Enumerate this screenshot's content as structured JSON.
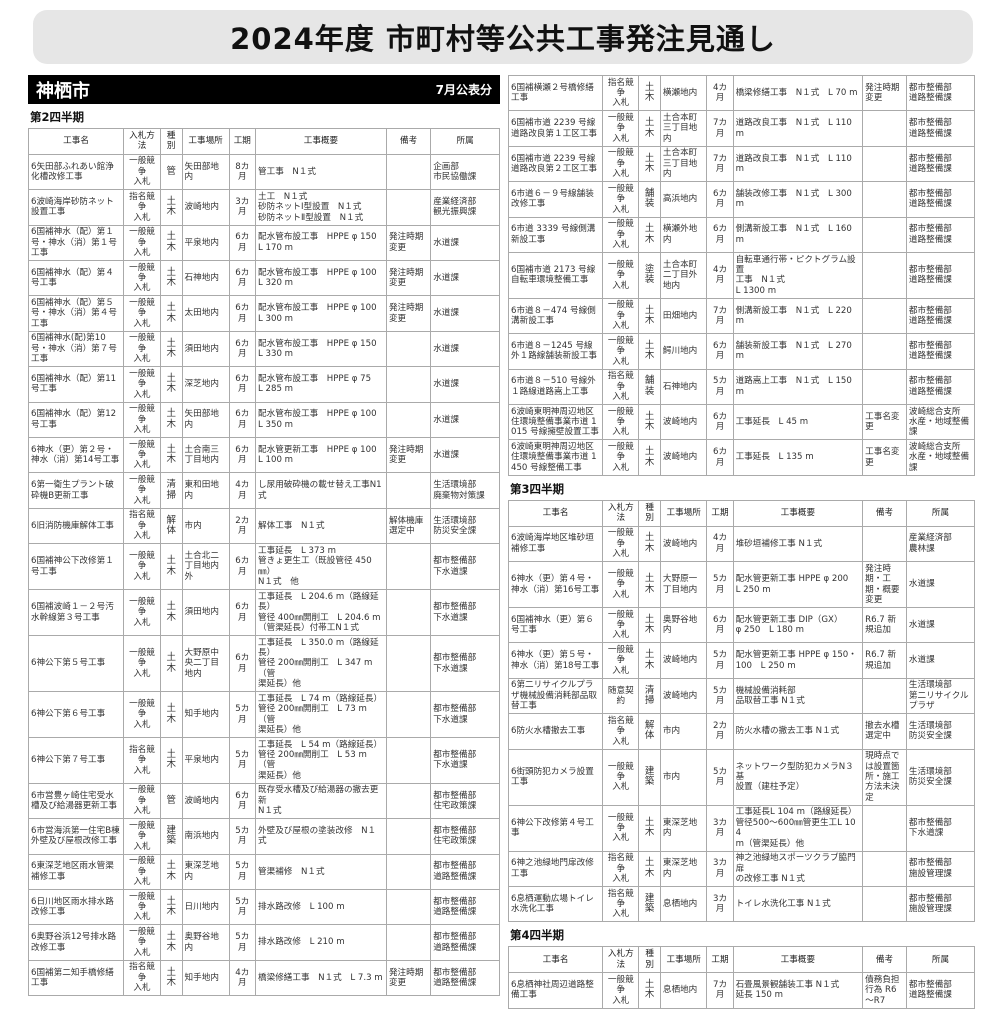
{
  "title": "2024年度 市町村等公共工事発注見通し",
  "city": "神栖市",
  "published": "7月公表分",
  "headers": [
    "工事名",
    "入札方法",
    "種別",
    "工事場所",
    "工期",
    "工事概要",
    "備考",
    "所属"
  ],
  "quarters": {
    "q2": {
      "label": "第2四半期",
      "rows_left": [
        [
          "6矢田部ふれあい館浄化槽改修工事",
          "一般競争\n入札",
          "管",
          "矢田部地内",
          "8カ月",
          "管工事　N１式",
          "",
          "企画部\n市民協働課"
        ],
        [
          "6波崎海岸砂防ネット設置工事",
          "指名競争\n入札",
          "土木",
          "波崎地内",
          "3カ月",
          "土工　N１式\n砂防ネットⅠ型設置　N１式\n砂防ネットⅡ型設置　N１式",
          "",
          "産業経済部\n観光振興課"
        ],
        [
          "6国補神水（配）第１号・神水（消）第１号工事",
          "一般競争\n入札",
          "土木",
          "平泉地内",
          "6カ月",
          "配水管布設工事　HPPE φ 150\nL 170 m",
          "発注時期変更",
          "水道課"
        ],
        [
          "6国補神水（配）第４号工事",
          "一般競争\n入札",
          "土木",
          "石神地内",
          "6カ月",
          "配水管布設工事　HPPE φ 100\nL 320 m",
          "発注時期変更",
          "水道課"
        ],
        [
          "6国補神水（配）第５号・神水（消）第４号工事",
          "一般競争\n入札",
          "土木",
          "太田地内",
          "6カ月",
          "配水管布設工事　HPPE φ 100\nL 300 m",
          "発注時期変更",
          "水道課"
        ],
        [
          "6国補神水(配)第10号・神水（消）第７号工事",
          "一般競争\n入札",
          "土木",
          "須田地内",
          "6カ月",
          "配水管布設工事　HPPE φ 150\nL 330 m",
          "",
          "水道課"
        ],
        [
          "6国補神水（配）第11号工事",
          "一般競争\n入札",
          "土木",
          "深芝地内",
          "6カ月",
          "配水管布設工事　HPPE φ 75\nL 285 m",
          "",
          "水道課"
        ],
        [
          "6国補神水（配）第12号工事",
          "一般競争\n入札",
          "土木",
          "矢田部地内",
          "6カ月",
          "配水管布設工事　HPPE φ 100\nL 350 m",
          "",
          "水道課"
        ],
        [
          "6神水（更）第２号・神水（消）第14号工事",
          "一般競争\n入札",
          "土木",
          "土合南三丁目地内",
          "6カ月",
          "配水管更新工事　HPPE φ 100\nL 100 m",
          "発注時期変更",
          "水道課"
        ],
        [
          "6第一衛生プラント破砕機B更新工事",
          "一般競争\n入札",
          "清掃",
          "東和田地内",
          "4カ月",
          "し尿用破砕機の載せ替え工事N1式",
          "",
          "生活環境部\n廃棄物対策課"
        ],
        [
          "6旧消防機庫解体工事",
          "指名競争\n入札",
          "解体",
          "市内",
          "2カ月",
          "解体工事　N１式",
          "解体機庫選定中",
          "生活環境部\n防災安全課"
        ],
        [
          "6国補神公下改修第１号工事",
          "一般競争\n入札",
          "土木",
          "土合北二丁目地内外",
          "6カ月",
          "工事延長　L 373 m\n管きょ更生工（既設管径 450㎜）\nN１式　他",
          "",
          "都市整備部\n下水道課"
        ],
        [
          "6国補波崎１－２号汚水幹線第３号工事",
          "一般競争\n入札",
          "土木",
          "須田地内",
          "6カ月",
          "工事延長　L 204.6 m（路線延長）\n管径 400㎜開削工　L 204.6 m\n（管渠延長）付帯工N１式",
          "",
          "都市整備部\n下水道課"
        ],
        [
          "6神公下第５号工事",
          "一般競争\n入札",
          "土木",
          "大野原中央二丁目地内",
          "6カ月",
          "工事延長　L 350.0 m（路線延長）\n管径 200㎜開削工　L 347 m（管\n渠延長）他",
          "",
          "都市整備部\n下水道課"
        ],
        [
          "6神公下第６号工事",
          "一般競争\n入札",
          "土木",
          "知手地内",
          "5カ月",
          "工事延長　L 74 m（路線延長）\n管径 200㎜開削工　L 73 m（管\n渠延長）他",
          "",
          "都市整備部\n下水道課"
        ],
        [
          "6神公下第７号工事",
          "指名競争\n入札",
          "土木",
          "平泉地内",
          "5カ月",
          "工事延長　L 54 m（路線延長）\n管径 200㎜開削工　L 53 m（管\n渠延長）他",
          "",
          "都市整備部\n下水道課"
        ],
        [
          "6市営豊ヶ崎住宅受水槽及び給湯器更新工事",
          "一般競争\n入札",
          "管",
          "波崎地内",
          "6カ月",
          "既存受水槽及び給湯器の撤去更新\nN１式",
          "",
          "都市整備部\n住宅政策課"
        ],
        [
          "6市営海浜第一住宅B棟外壁及び屋根改修工事",
          "一般競争\n入札",
          "建築",
          "南浜地内",
          "5カ月",
          "外壁及び屋根の塗装改修　N１式",
          "",
          "都市整備部\n住宅政策課"
        ],
        [
          "6東深芝地区雨水管渠補修工事",
          "一般競争\n入札",
          "土木",
          "東深芝地内",
          "5カ月",
          "管渠補修　N１式",
          "",
          "都市整備部\n道路整備課"
        ],
        [
          "6日川地区雨水排水路改修工事",
          "一般競争\n入札",
          "土木",
          "日川地内",
          "5カ月",
          "排水路改修　L 100 m",
          "",
          "都市整備部\n道路整備課"
        ],
        [
          "6奥野谷浜12号排水路改修工事",
          "一般競争\n入札",
          "土木",
          "奥野谷地内",
          "5カ月",
          "排水路改修　L 210 m",
          "",
          "都市整備部\n道路整備課"
        ],
        [
          "6国補第二知手橋修繕工事",
          "指名競争\n入札",
          "土木",
          "知手地内",
          "4カ月",
          "橋梁修繕工事　N１式　L 7.3 m",
          "発注時期変更",
          "都市整備部\n道路整備課"
        ]
      ],
      "rows_right": [
        [
          "6国補横瀬２号橋修繕工事",
          "指名競争\n入札",
          "土木",
          "横瀬地内",
          "4カ月",
          "橋梁修繕工事　N１式　L 70 m",
          "発注時期変更",
          "都市整備部\n道路整備課"
        ],
        [
          "6国補市道 2239 号線道路改良第１工区工事",
          "一般競争\n入札",
          "土木",
          "土合本町三丁目地内",
          "7カ月",
          "道路改良工事　N１式　L 110 m",
          "",
          "都市整備部\n道路整備課"
        ],
        [
          "6国補市道 2239 号線道路改良第２工区工事",
          "一般競争\n入札",
          "土木",
          "土合本町三丁目地内",
          "7カ月",
          "道路改良工事　N１式　L 110 m",
          "",
          "都市整備部\n道路整備課"
        ],
        [
          "6市道６－９号線舗装改修工事",
          "一般競争\n入札",
          "舗装",
          "高浜地内",
          "6カ月",
          "舗装改修工事　N１式　L 300 m",
          "",
          "都市整備部\n道路整備課"
        ],
        [
          "6市道 3339 号線側溝新設工事",
          "一般競争\n入札",
          "土木",
          "横瀬外地内",
          "6カ月",
          "側溝新設工事　N１式　L 160 m",
          "",
          "都市整備部\n道路整備課"
        ],
        [
          "6国補市道 2173 号線自転車環境整備工事",
          "一般競争\n入札",
          "塗装",
          "土合本町二丁目外地内",
          "4カ月",
          "自転車通行帯・ピクトグラム設置\n工事　N１式\nL 1300 m",
          "",
          "都市整備部\n道路整備課"
        ],
        [
          "6市道８－474 号線側溝新設工事",
          "一般競争\n入札",
          "土木",
          "田畑地内",
          "7カ月",
          "側溝新設工事　N１式　L 220 m",
          "",
          "都市整備部\n道路整備課"
        ],
        [
          "6市道８－1245 号線外１路線舗装新設工事",
          "一般競争\n入札",
          "土木",
          "鰐川地内",
          "6カ月",
          "舗装新設工事　N１式　L 270 m",
          "",
          "都市整備部\n道路整備課"
        ],
        [
          "6市道８－510 号線外１路線道路嵩上工事",
          "指名競争\n入札",
          "舗装",
          "石神地内",
          "5カ月",
          "道路嵩上工事　N１式　L 150 m",
          "",
          "都市整備部\n道路整備課"
        ],
        [
          "6波崎東明神周辺地区住環境整備事業市道 1015 号線擁壁設置工事",
          "一般競争\n入札",
          "土木",
          "波崎地内",
          "6カ月",
          "工事延長　L 45 m",
          "工事名変更",
          "波崎総合支所\n水産・地域整備課"
        ],
        [
          "6波崎東明神周辺地区住環境整備事業市道 1450 号線整備工事",
          "一般競争\n入札",
          "土木",
          "波崎地内",
          "6カ月",
          "工事延長　L 135 m",
          "工事名変更",
          "波崎総合支所\n水産・地域整備課"
        ]
      ]
    },
    "q3": {
      "label": "第3四半期",
      "rows": [
        [
          "6波崎海岸地区堆砂垣補修工事",
          "一般競争\n入札",
          "土木",
          "波崎地内",
          "4カ月",
          "堆砂垣補修工事 N１式",
          "",
          "産業経済部\n農林課"
        ],
        [
          "6神水（更）第４号・神水（消）第16号工事",
          "一般競争\n入札",
          "土木",
          "大野原一丁目地内",
          "5カ月",
          "配水管更新工事 HPPE φ 200\nL 250 m",
          "発注時期・工期・概要変更",
          "水道課"
        ],
        [
          "6国補神水（更）第６号工事",
          "一般競争\n入札",
          "土木",
          "奥野谷地内",
          "6カ月",
          "配水管更新工事 DIP（GX）\nφ 250　L 180 m",
          "R6.7 新規追加",
          "水道課"
        ],
        [
          "6神水（更）第５号・神水（消）第18号工事",
          "一般競争\n入札",
          "土木",
          "波崎地内",
          "5カ月",
          "配水管更新工事 HPPE φ 150・\n100　L 250 m",
          "R6.7 新規追加",
          "水道課"
        ],
        [
          "6第二リサイクルプラザ機械設備消耗部品取替工事",
          "随意契約",
          "清掃",
          "波崎地内",
          "5カ月",
          "機械設備消耗部\n品取替工事 N１式",
          "",
          "生活環境部\n第二リサイクル\nプラザ"
        ],
        [
          "6防火水槽撤去工事",
          "指名競争\n入札",
          "解体",
          "市内",
          "2カ月",
          "防火水槽の撤去工事 N１式",
          "撤去水槽選定中",
          "生活環境部\n防災安全課"
        ],
        [
          "6街頭防犯カメラ設置工事",
          "一般競争\n入札",
          "建築",
          "市内",
          "5カ月",
          "ネットワーク型防犯カメラN３基\n設置（建柱予定）",
          "現時点では設置箇所・施工方法未決定",
          "生活環境部\n防災安全課"
        ],
        [
          "6神公下改修第４号工事",
          "一般競争\n入札",
          "土木",
          "東深芝地内",
          "3カ月",
          "工事延長L 104 m（路線延長）\n管径500～600㎜管更生工L 104\nm（管渠延長）他",
          "",
          "都市整備部\n下水道課"
        ],
        [
          "6神之池緑地門扉改修工事",
          "指名競争\n入札",
          "土木",
          "東深芝地内",
          "3カ月",
          "神之池緑地スポーツクラブ脇門扉\nの改修工事 N１式",
          "",
          "都市整備部\n施設管理課"
        ],
        [
          "6息栖運動広場トイレ水洗化工事",
          "指名競争\n入札",
          "建築",
          "息栖地内",
          "3カ月",
          "トイレ水洗化工事 N１式",
          "",
          "都市整備部\n施設管理課"
        ]
      ]
    },
    "q4": {
      "label": "第4四半期",
      "rows": [
        [
          "6息栖神社周辺道路整備工事",
          "一般競争\n入札",
          "土木",
          "息栖地内",
          "7カ月",
          "石畳風景観舗装工事 N１式\n延長 150 m",
          "債務負担行為 R6～R7",
          "都市整備部\n道路整備課"
        ]
      ]
    }
  }
}
